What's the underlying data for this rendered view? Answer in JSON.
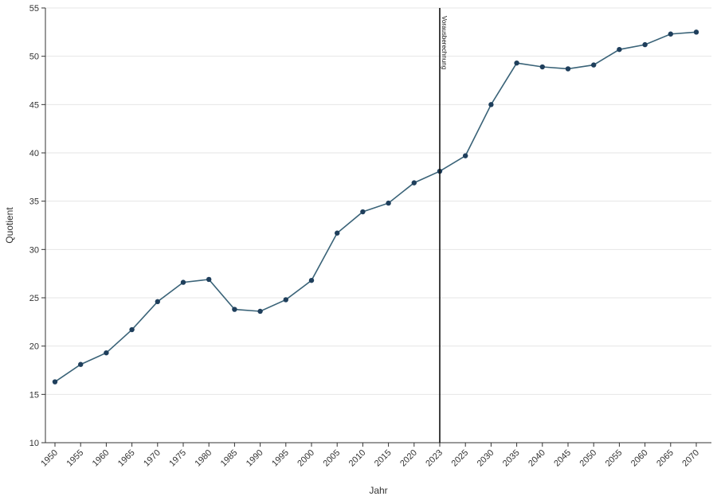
{
  "chart_data": {
    "type": "line",
    "xlabel": "Jahr",
    "ylabel": "Quotient",
    "ylim": [
      10,
      55
    ],
    "yticks": [
      10,
      15,
      20,
      25,
      30,
      35,
      40,
      45,
      50,
      55
    ],
    "categories": [
      "1950",
      "1955",
      "1960",
      "1965",
      "1970",
      "1975",
      "1980",
      "1985",
      "1990",
      "1995",
      "2000",
      "2005",
      "2010",
      "2015",
      "2020",
      "2023",
      "2025",
      "2030",
      "2035",
      "2040",
      "2045",
      "2050",
      "2055",
      "2060",
      "2065",
      "2070"
    ],
    "series": [
      {
        "values": [
          16.3,
          18.1,
          19.3,
          21.7,
          24.6,
          26.6,
          26.9,
          23.8,
          23.6,
          24.8,
          26.8,
          31.7,
          33.9,
          34.8,
          36.9,
          38.1,
          39.7,
          45.0,
          49.3,
          48.9,
          48.7,
          49.1,
          50.7,
          51.2,
          52.3,
          52.5
        ],
        "color": "#3a6378"
      }
    ],
    "marker": {
      "category": "2023",
      "label": "Vorausberechnung"
    },
    "grid": {
      "horizontal": true,
      "vertical": false
    },
    "legend": "none"
  }
}
